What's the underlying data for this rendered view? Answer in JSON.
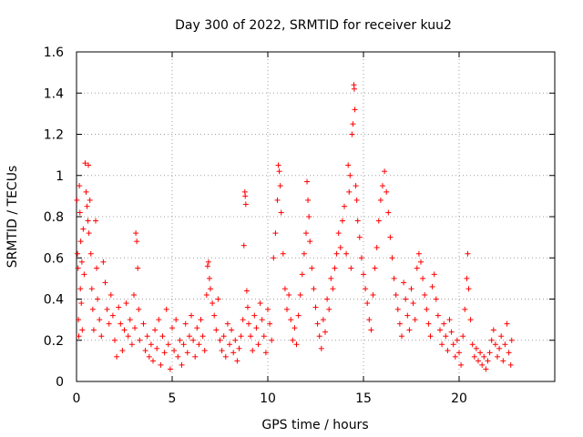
{
  "chart_data": {
    "type": "scatter",
    "title": "Day 300 of 2022, SRMTID for receiver kuu2",
    "xlabel": "GPS time / hours",
    "ylabel": "SRMTID / TECUs",
    "xlim": [
      0,
      25
    ],
    "ylim": [
      0,
      1.6
    ],
    "xticks": [
      0,
      5,
      10,
      15,
      20
    ],
    "xtick_labels": [
      "0",
      "5",
      "10",
      "15",
      "20"
    ],
    "yticks": [
      0,
      0.2,
      0.4,
      0.6,
      0.8,
      1.0,
      1.2,
      1.4,
      1.6
    ],
    "ytick_labels": [
      "0",
      "0.2",
      "0.4",
      "0.6",
      "0.8",
      "1",
      "1.2",
      "1.4",
      "1.6"
    ],
    "grid": true,
    "marker": "+",
    "marker_color": "#ff0000",
    "series": [
      {
        "name": "SRMTID",
        "points": [
          [
            0.02,
            0.88
          ],
          [
            0.05,
            0.62
          ],
          [
            0.08,
            0.55
          ],
          [
            0.1,
            0.3
          ],
          [
            0.12,
            0.22
          ],
          [
            0.15,
            0.95
          ],
          [
            0.18,
            0.82
          ],
          [
            0.2,
            0.45
          ],
          [
            0.22,
            0.68
          ],
          [
            0.25,
            0.38
          ],
          [
            0.28,
            0.58
          ],
          [
            0.3,
            0.25
          ],
          [
            0.35,
            0.74
          ],
          [
            0.4,
            0.52
          ],
          [
            0.45,
            1.06
          ],
          [
            0.5,
            0.92
          ],
          [
            0.55,
            0.85
          ],
          [
            0.6,
            0.78
          ],
          [
            0.62,
            1.05
          ],
          [
            0.65,
            0.72
          ],
          [
            0.7,
            0.88
          ],
          [
            0.75,
            0.62
          ],
          [
            0.8,
            0.45
          ],
          [
            0.85,
            0.35
          ],
          [
            0.9,
            0.25
          ],
          [
            1.0,
            0.78
          ],
          [
            1.05,
            0.55
          ],
          [
            1.1,
            0.4
          ],
          [
            1.2,
            0.3
          ],
          [
            1.3,
            0.22
          ],
          [
            1.4,
            0.58
          ],
          [
            1.5,
            0.48
          ],
          [
            1.6,
            0.35
          ],
          [
            1.7,
            0.28
          ],
          [
            1.8,
            0.42
          ],
          [
            1.9,
            0.32
          ],
          [
            2.0,
            0.2
          ],
          [
            2.1,
            0.12
          ],
          [
            2.2,
            0.36
          ],
          [
            2.3,
            0.28
          ],
          [
            2.4,
            0.15
          ],
          [
            2.5,
            0.25
          ],
          [
            2.6,
            0.38
          ],
          [
            2.7,
            0.22
          ],
          [
            2.8,
            0.3
          ],
          [
            2.9,
            0.18
          ],
          [
            3.0,
            0.42
          ],
          [
            3.05,
            0.26
          ],
          [
            3.1,
            0.72
          ],
          [
            3.15,
            0.68
          ],
          [
            3.2,
            0.55
          ],
          [
            3.25,
            0.35
          ],
          [
            3.3,
            0.2
          ],
          [
            3.5,
            0.28
          ],
          [
            3.6,
            0.15
          ],
          [
            3.7,
            0.22
          ],
          [
            3.8,
            0.12
          ],
          [
            3.9,
            0.18
          ],
          [
            4.0,
            0.1
          ],
          [
            4.1,
            0.25
          ],
          [
            4.2,
            0.16
          ],
          [
            4.3,
            0.3
          ],
          [
            4.4,
            0.08
          ],
          [
            4.5,
            0.22
          ],
          [
            4.6,
            0.14
          ],
          [
            4.7,
            0.35
          ],
          [
            4.8,
            0.18
          ],
          [
            4.9,
            0.06
          ],
          [
            5.0,
            0.26
          ],
          [
            5.1,
            0.15
          ],
          [
            5.2,
            0.3
          ],
          [
            5.3,
            0.12
          ],
          [
            5.4,
            0.2
          ],
          [
            5.5,
            0.08
          ],
          [
            5.6,
            0.18
          ],
          [
            5.7,
            0.28
          ],
          [
            5.8,
            0.14
          ],
          [
            5.9,
            0.22
          ],
          [
            6.0,
            0.32
          ],
          [
            6.1,
            0.2
          ],
          [
            6.2,
            0.12
          ],
          [
            6.3,
            0.26
          ],
          [
            6.4,
            0.18
          ],
          [
            6.5,
            0.3
          ],
          [
            6.6,
            0.22
          ],
          [
            6.7,
            0.15
          ],
          [
            6.8,
            0.42
          ],
          [
            6.85,
            0.56
          ],
          [
            6.9,
            0.58
          ],
          [
            6.95,
            0.5
          ],
          [
            7.0,
            0.45
          ],
          [
            7.1,
            0.38
          ],
          [
            7.2,
            0.32
          ],
          [
            7.3,
            0.25
          ],
          [
            7.4,
            0.4
          ],
          [
            7.5,
            0.2
          ],
          [
            7.6,
            0.15
          ],
          [
            7.7,
            0.22
          ],
          [
            7.8,
            0.12
          ],
          [
            7.9,
            0.28
          ],
          [
            8.0,
            0.18
          ],
          [
            8.1,
            0.25
          ],
          [
            8.2,
            0.14
          ],
          [
            8.3,
            0.2
          ],
          [
            8.4,
            0.1
          ],
          [
            8.5,
            0.16
          ],
          [
            8.6,
            0.22
          ],
          [
            8.7,
            0.3
          ],
          [
            8.75,
            0.66
          ],
          [
            8.8,
            0.92
          ],
          [
            8.82,
            0.9
          ],
          [
            8.85,
            0.86
          ],
          [
            8.9,
            0.44
          ],
          [
            8.95,
            0.36
          ],
          [
            9.0,
            0.28
          ],
          [
            9.1,
            0.22
          ],
          [
            9.2,
            0.15
          ],
          [
            9.3,
            0.32
          ],
          [
            9.4,
            0.26
          ],
          [
            9.5,
            0.18
          ],
          [
            9.6,
            0.38
          ],
          [
            9.7,
            0.3
          ],
          [
            9.8,
            0.22
          ],
          [
            9.9,
            0.14
          ],
          [
            10.0,
            0.35
          ],
          [
            10.1,
            0.28
          ],
          [
            10.2,
            0.2
          ],
          [
            10.3,
            0.6
          ],
          [
            10.4,
            0.72
          ],
          [
            10.5,
            0.88
          ],
          [
            10.55,
            1.05
          ],
          [
            10.6,
            1.02
          ],
          [
            10.65,
            0.95
          ],
          [
            10.7,
            0.82
          ],
          [
            10.8,
            0.62
          ],
          [
            10.9,
            0.45
          ],
          [
            11.0,
            0.35
          ],
          [
            11.1,
            0.42
          ],
          [
            11.2,
            0.3
          ],
          [
            11.3,
            0.2
          ],
          [
            11.4,
            0.26
          ],
          [
            11.5,
            0.18
          ],
          [
            11.6,
            0.32
          ],
          [
            11.7,
            0.42
          ],
          [
            11.8,
            0.52
          ],
          [
            11.9,
            0.62
          ],
          [
            12.0,
            0.72
          ],
          [
            12.05,
            0.97
          ],
          [
            12.1,
            0.88
          ],
          [
            12.15,
            0.8
          ],
          [
            12.2,
            0.68
          ],
          [
            12.3,
            0.55
          ],
          [
            12.4,
            0.45
          ],
          [
            12.5,
            0.36
          ],
          [
            12.6,
            0.28
          ],
          [
            12.7,
            0.22
          ],
          [
            12.8,
            0.16
          ],
          [
            12.9,
            0.3
          ],
          [
            13.0,
            0.24
          ],
          [
            13.1,
            0.4
          ],
          [
            13.2,
            0.35
          ],
          [
            13.3,
            0.5
          ],
          [
            13.4,
            0.45
          ],
          [
            13.5,
            0.55
          ],
          [
            13.6,
            0.62
          ],
          [
            13.7,
            0.72
          ],
          [
            13.8,
            0.65
          ],
          [
            13.9,
            0.78
          ],
          [
            14.0,
            0.85
          ],
          [
            14.1,
            0.62
          ],
          [
            14.2,
            1.05
          ],
          [
            14.25,
            0.92
          ],
          [
            14.3,
            1.0
          ],
          [
            14.35,
            0.55
          ],
          [
            14.4,
            1.2
          ],
          [
            14.45,
            1.25
          ],
          [
            14.5,
            1.44
          ],
          [
            14.52,
            1.42
          ],
          [
            14.55,
            1.32
          ],
          [
            14.6,
            0.95
          ],
          [
            14.65,
            0.88
          ],
          [
            14.7,
            0.78
          ],
          [
            14.8,
            0.7
          ],
          [
            14.9,
            0.6
          ],
          [
            15.0,
            0.52
          ],
          [
            15.1,
            0.45
          ],
          [
            15.2,
            0.38
          ],
          [
            15.3,
            0.3
          ],
          [
            15.4,
            0.25
          ],
          [
            15.5,
            0.42
          ],
          [
            15.6,
            0.55
          ],
          [
            15.7,
            0.65
          ],
          [
            15.8,
            0.78
          ],
          [
            15.9,
            0.88
          ],
          [
            16.0,
            0.95
          ],
          [
            16.1,
            1.02
          ],
          [
            16.2,
            0.92
          ],
          [
            16.3,
            0.82
          ],
          [
            16.4,
            0.7
          ],
          [
            16.5,
            0.6
          ],
          [
            16.6,
            0.5
          ],
          [
            16.7,
            0.42
          ],
          [
            16.8,
            0.35
          ],
          [
            16.9,
            0.28
          ],
          [
            17.0,
            0.22
          ],
          [
            17.1,
            0.48
          ],
          [
            17.2,
            0.4
          ],
          [
            17.3,
            0.32
          ],
          [
            17.4,
            0.25
          ],
          [
            17.5,
            0.45
          ],
          [
            17.6,
            0.38
          ],
          [
            17.7,
            0.3
          ],
          [
            17.8,
            0.55
          ],
          [
            17.9,
            0.62
          ],
          [
            18.0,
            0.58
          ],
          [
            18.1,
            0.5
          ],
          [
            18.2,
            0.42
          ],
          [
            18.3,
            0.35
          ],
          [
            18.4,
            0.28
          ],
          [
            18.5,
            0.22
          ],
          [
            18.6,
            0.46
          ],
          [
            18.7,
            0.52
          ],
          [
            18.8,
            0.4
          ],
          [
            18.9,
            0.32
          ],
          [
            19.0,
            0.25
          ],
          [
            19.1,
            0.18
          ],
          [
            19.2,
            0.28
          ],
          [
            19.3,
            0.22
          ],
          [
            19.4,
            0.15
          ],
          [
            19.5,
            0.3
          ],
          [
            19.6,
            0.24
          ],
          [
            19.7,
            0.18
          ],
          [
            19.8,
            0.12
          ],
          [
            19.9,
            0.2
          ],
          [
            20.0,
            0.14
          ],
          [
            20.1,
            0.08
          ],
          [
            20.2,
            0.22
          ],
          [
            20.3,
            0.35
          ],
          [
            20.4,
            0.5
          ],
          [
            20.45,
            0.62
          ],
          [
            20.5,
            0.45
          ],
          [
            20.6,
            0.3
          ],
          [
            20.7,
            0.18
          ],
          [
            20.8,
            0.12
          ],
          [
            20.9,
            0.16
          ],
          [
            21.0,
            0.1
          ],
          [
            21.1,
            0.14
          ],
          [
            21.2,
            0.08
          ],
          [
            21.3,
            0.12
          ],
          [
            21.4,
            0.06
          ],
          [
            21.5,
            0.1
          ],
          [
            21.6,
            0.14
          ],
          [
            21.7,
            0.2
          ],
          [
            21.8,
            0.25
          ],
          [
            21.9,
            0.18
          ],
          [
            22.0,
            0.12
          ],
          [
            22.1,
            0.16
          ],
          [
            22.2,
            0.22
          ],
          [
            22.3,
            0.1
          ],
          [
            22.4,
            0.18
          ],
          [
            22.5,
            0.28
          ],
          [
            22.6,
            0.14
          ],
          [
            22.7,
            0.08
          ],
          [
            22.75,
            0.2
          ]
        ]
      }
    ]
  }
}
